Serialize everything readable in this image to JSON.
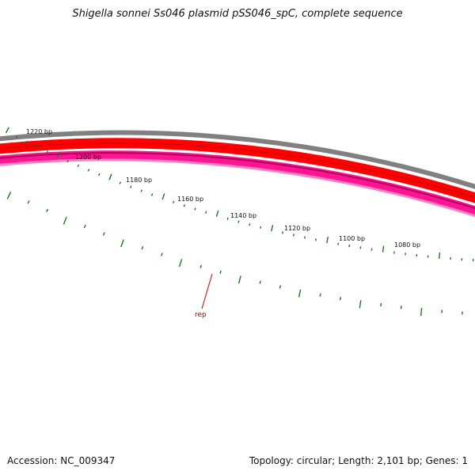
{
  "title": "Shigella sonnei Ss046 plasmid pSS046_spC, complete sequence",
  "accession_text": "Accession: NC_009347",
  "summary_text": "Topology: circular; Length: 2,101 bp; Genes: 1",
  "colors": {
    "backbone": "#808080",
    "forward_track": "#ff0000",
    "reverse_track": "#ff1493",
    "tick": "#1a7a1a",
    "gene_label": "#cc0000"
  },
  "tick_labels": [
    "1220 bp",
    "1200 bp",
    "1180 bp",
    "1160 bp",
    "1140 bp",
    "1120 bp",
    "1100 bp",
    "1080 bp"
  ],
  "gene": {
    "name": "rep"
  }
}
